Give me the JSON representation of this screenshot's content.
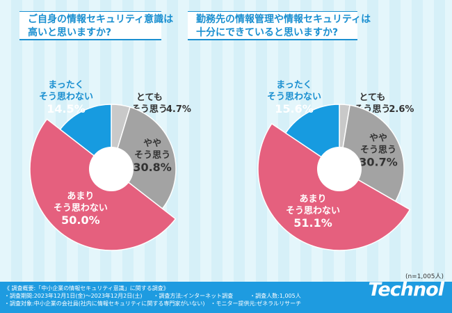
{
  "chart_data": [
    {
      "type": "pie",
      "title": "ご自身の情報セキュリティ意識は\n高いと思いますか?",
      "slices": [
        {
          "label": "とても\nそう思う",
          "value": 4.7,
          "color": "#c9c9c9"
        },
        {
          "label": "やや\nそう思う",
          "value": 30.8,
          "color": "#a3a3a3"
        },
        {
          "label": "あまり\nそう思わない",
          "value": 50.0,
          "color": "#e5607e"
        },
        {
          "label": "まったく\nそう思わない",
          "value": 14.5,
          "color": "#179be0"
        }
      ]
    },
    {
      "type": "pie",
      "title": "勤務先の情報管理や情報セキュリティは\n十分にできていると思いますか?",
      "slices": [
        {
          "label": "とても\nそう思う",
          "value": 2.6,
          "color": "#c9c9c9"
        },
        {
          "label": "やや\nそう思う",
          "value": 30.7,
          "color": "#a3a3a3"
        },
        {
          "label": "あまり\nそう思わない",
          "value": 51.1,
          "color": "#e5607e"
        },
        {
          "label": "まったく\nそう思わない",
          "value": 15.6,
          "color": "#179be0"
        }
      ]
    }
  ],
  "sample_note": "(n=1,005人)",
  "footer": {
    "lines": "《 調査概要:「中小企業の情報セキュリティ意識」に関する調査》\n・調査期間:2023年12月1日(金)〜2023年12月2日(土)　　・調査方法:インターネット調査　　　・調査人数:1,005人\n・調査対象:中小企業の会社員(社内に情報セキュリティに関する専門家がいない)　・モニター提供元:ゼネラルリサーチ",
    "logo": "Technol"
  }
}
